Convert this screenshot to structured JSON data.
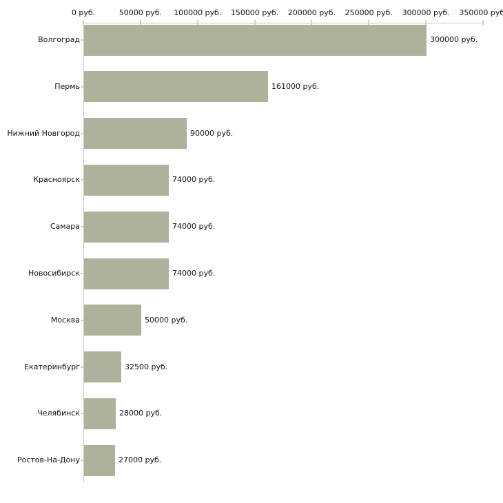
{
  "chart_data": {
    "type": "bar",
    "orientation": "horizontal",
    "title": "",
    "xlabel": "",
    "ylabel": "",
    "unit": "руб.",
    "categories": [
      "Волгоград",
      "Пермь",
      "Нижний Новгород",
      "Красноярск",
      "Самара",
      "Новосибирск",
      "Москва",
      "Екатеринбург",
      "Челябинск",
      "Ростов-На-Дону"
    ],
    "values": [
      300000,
      161000,
      90000,
      74000,
      74000,
      74000,
      50000,
      32500,
      28000,
      27000
    ],
    "value_labels": [
      "300000 руб.",
      "161000 руб.",
      "90000 руб.",
      "74000 руб.",
      "74000 руб.",
      "74000 руб.",
      "50000 руб.",
      "32500 руб.",
      "28000 руб.",
      "27000 руб."
    ],
    "xlim": [
      0,
      350000
    ],
    "x_ticks": [
      {
        "value": 0,
        "label": "0 руб."
      },
      {
        "value": 50000,
        "label": "50000 руб."
      },
      {
        "value": 100000,
        "label": "100000 руб."
      },
      {
        "value": 150000,
        "label": "150000 руб."
      },
      {
        "value": 200000,
        "label": "200000 руб."
      },
      {
        "value": 250000,
        "label": "250000 руб."
      },
      {
        "value": 300000,
        "label": "300000 руб."
      },
      {
        "value": 350000,
        "label": "350000 руб."
      }
    ],
    "grid": false,
    "legend": false,
    "colors": {
      "bar": "#adb39a",
      "axis_line": "#c6c6c6",
      "tick_mark": "#d5d2b8",
      "text": "#111111",
      "background": "#ffffff"
    }
  }
}
